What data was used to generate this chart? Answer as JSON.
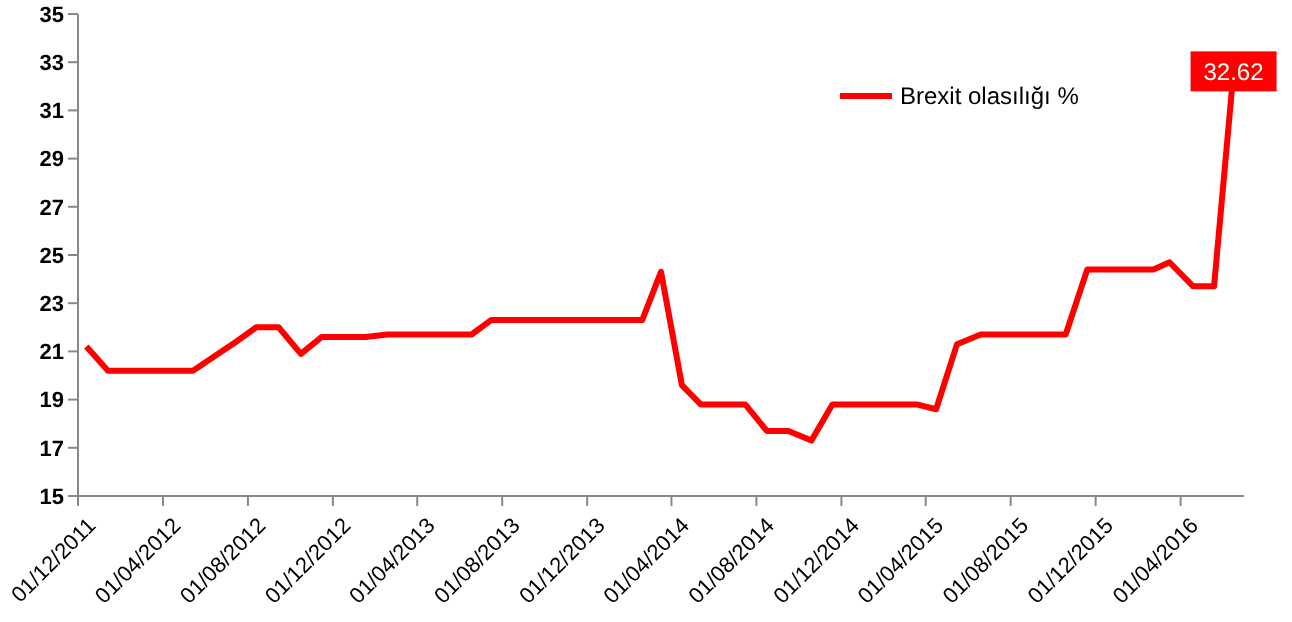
{
  "chart_data": {
    "type": "line",
    "x": [
      "2011-12-13",
      "2012-01-13",
      "2012-05-14",
      "2012-07-15",
      "2012-08-13",
      "2012-09-14",
      "2012-10-16",
      "2012-11-15",
      "2013-01-17",
      "2013-02-17",
      "2013-06-18",
      "2013-07-16",
      "2014-02-18",
      "2014-03-17",
      "2014-04-16",
      "2014-05-13",
      "2014-07-16",
      "2014-08-16",
      "2014-09-16",
      "2014-10-19",
      "2014-11-18",
      "2015-03-19",
      "2015-04-16",
      "2015-05-16",
      "2015-06-19",
      "2015-10-19",
      "2015-11-19",
      "2016-02-22",
      "2016-03-16",
      "2016-04-19",
      "2016-05-19",
      "2016-06-16"
    ],
    "series": [
      {
        "name": "Brexit olasılığı %",
        "color": "#ff0000",
        "values": [
          21.2,
          20.2,
          20.2,
          21.4,
          22.0,
          22.0,
          20.9,
          21.6,
          21.6,
          21.7,
          21.7,
          22.3,
          22.3,
          24.3,
          19.6,
          18.8,
          18.8,
          17.7,
          17.7,
          17.3,
          18.8,
          18.8,
          18.6,
          21.3,
          21.7,
          21.7,
          24.4,
          24.4,
          24.7,
          23.7,
          23.7,
          32.62
        ],
        "value_labels": [
          null,
          null,
          null,
          null,
          null,
          null,
          null,
          null,
          null,
          null,
          null,
          null,
          null,
          null,
          null,
          null,
          null,
          null,
          null,
          null,
          null,
          null,
          null,
          null,
          null,
          null,
          null,
          null,
          null,
          null,
          null,
          "32.62"
        ]
      }
    ],
    "ylim": [
      15,
      35
    ],
    "yticks": [
      15,
      17,
      19,
      21,
      23,
      25,
      27,
      29,
      31,
      33,
      35
    ],
    "xlim": [
      "2011-12-01",
      "2016-07-01"
    ],
    "xticks": [
      {
        "value": "2011-12-01",
        "label": "01/12/2011"
      },
      {
        "value": "2012-04-01",
        "label": "01/04/2012"
      },
      {
        "value": "2012-08-01",
        "label": "01/08/2012"
      },
      {
        "value": "2012-12-01",
        "label": "01/12/2012"
      },
      {
        "value": "2013-04-01",
        "label": "01/04/2013"
      },
      {
        "value": "2013-08-01",
        "label": "01/08/2013"
      },
      {
        "value": "2013-12-01",
        "label": "01/12/2013"
      },
      {
        "value": "2014-04-01",
        "label": "01/04/2014"
      },
      {
        "value": "2014-08-01",
        "label": "01/08/2014"
      },
      {
        "value": "2014-12-01",
        "label": "01/12/2014"
      },
      {
        "value": "2015-04-01",
        "label": "01/04/2015"
      },
      {
        "value": "2015-08-01",
        "label": "01/08/2015"
      },
      {
        "value": "2015-12-01",
        "label": "01/12/2015"
      },
      {
        "value": "2016-04-01",
        "label": "01/04/2016"
      }
    ],
    "legend": "top right",
    "grid": false,
    "marker": "none",
    "line_style": "solid"
  }
}
